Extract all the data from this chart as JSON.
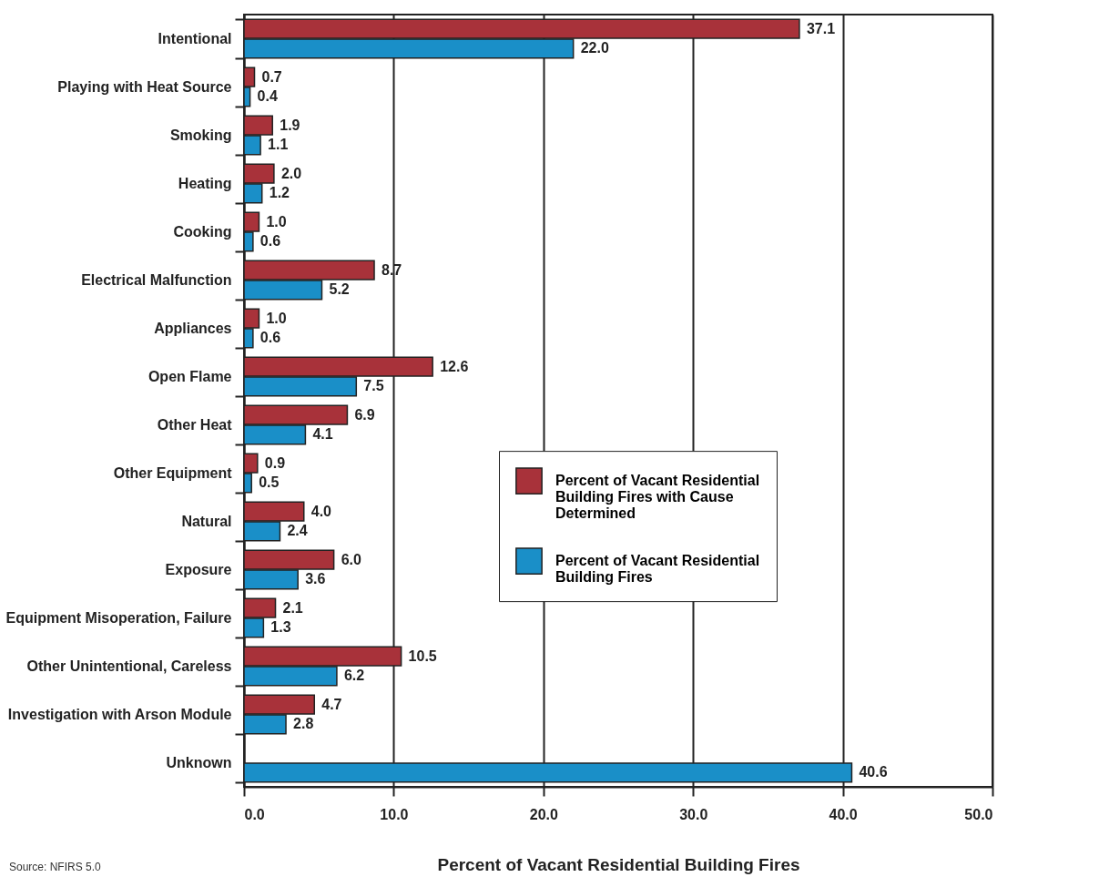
{
  "chart_data": {
    "type": "bar",
    "orientation": "horizontal",
    "xlabel": "Percent of Vacant Residential Building Fires",
    "categories": [
      "Intentional",
      "Playing with Heat Source",
      "Smoking",
      "Heating",
      "Cooking",
      "Electrical Malfunction",
      "Appliances",
      "Open Flame",
      "Other Heat",
      "Other Equipment",
      "Natural",
      "Exposure",
      "Equipment Misoperation, Failure",
      "Other Unintentional, Careless",
      "Investigation with Arson Module",
      "Unknown"
    ],
    "series": [
      {
        "name": "Percent of Vacant Residential Building Fires with Cause Determined",
        "color": "#a8323a",
        "values": [
          37.1,
          0.7,
          1.9,
          2.0,
          1.0,
          8.7,
          1.0,
          12.6,
          6.9,
          0.9,
          4.0,
          6.0,
          2.1,
          10.5,
          4.7,
          null
        ],
        "value_labels": [
          "37.1",
          "0.7",
          "1.9",
          "2.0",
          "1.0",
          "8.7",
          "1.0",
          "12.6",
          "6.9",
          "0.9",
          "4.0",
          "6.0",
          "2.1",
          "10.5",
          "4.7",
          null
        ]
      },
      {
        "name": "Percent of Vacant Residential Building Fires",
        "color": "#1a8fc8",
        "values": [
          22.0,
          0.4,
          1.1,
          1.2,
          0.6,
          5.2,
          0.6,
          7.5,
          4.1,
          0.5,
          2.4,
          3.6,
          1.3,
          6.2,
          2.8,
          40.6
        ],
        "value_labels": [
          "22.0",
          "0.4",
          "1.1",
          "1.2",
          "0.6",
          "5.2",
          "0.6",
          "7.5",
          "4.1",
          "0.5",
          "2.4",
          "3.6",
          "1.3",
          "6.2",
          "2.8",
          "40.6"
        ]
      }
    ],
    "xlim": [
      0,
      50
    ],
    "xticks": [
      {
        "value": 0,
        "label": "0.0"
      },
      {
        "value": 10,
        "label": "10.0"
      },
      {
        "value": 20,
        "label": "20.0"
      },
      {
        "value": 30,
        "label": "30.0"
      },
      {
        "value": 40,
        "label": "40.0"
      },
      {
        "value": 50,
        "label": "50.0"
      }
    ],
    "grid": "x",
    "legend": "right",
    "annotations": [
      "Source:  NFIRS 5.0"
    ]
  }
}
